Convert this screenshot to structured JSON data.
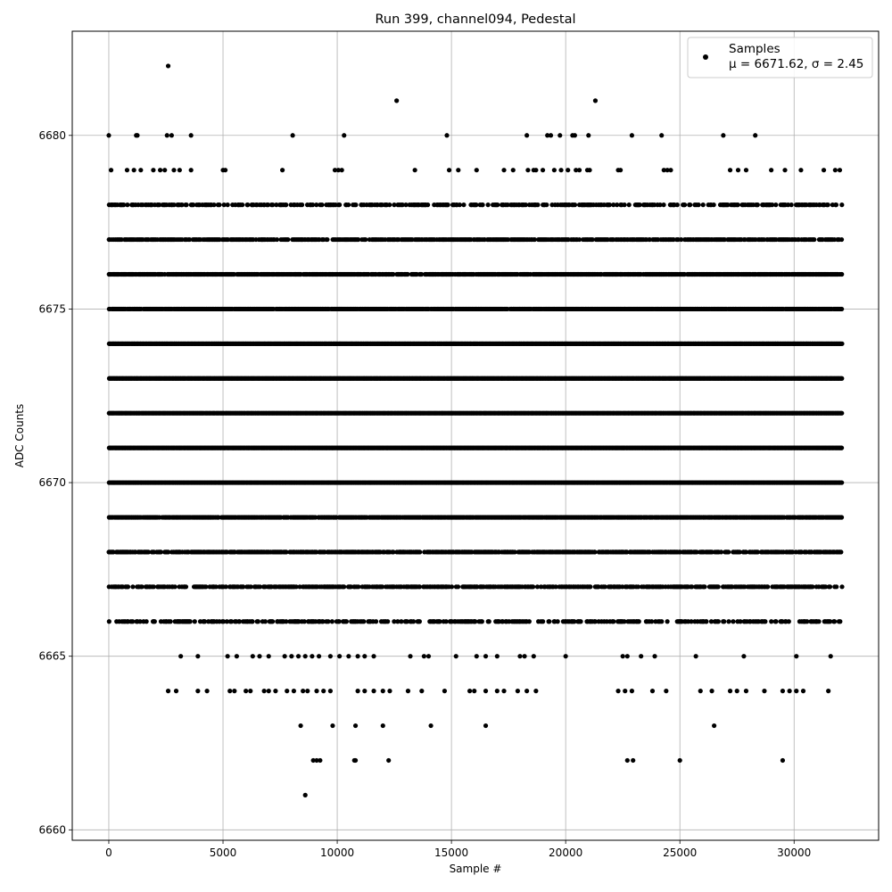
{
  "chart_data": {
    "type": "scatter",
    "title": "Run 399, channel094, Pedestal",
    "xlabel": "Sample #",
    "ylabel": "ADC Counts",
    "xlim": [
      -1600,
      33700
    ],
    "ylim": [
      6659.7,
      6683.0
    ],
    "xticks": [
      0,
      5000,
      10000,
      15000,
      20000,
      25000,
      30000
    ],
    "yticks": [
      6660,
      6665,
      6670,
      6675,
      6680
    ],
    "grid": true,
    "legend_position": "top-right",
    "marker_color": "#000000",
    "series": [
      {
        "name": "Samples",
        "stats_text": "μ = 6671.62, σ = 2.45",
        "dense_levels": [
          {
            "y": 6666,
            "x_range": [
              0,
              32100
            ],
            "density": 0.45
          },
          {
            "y": 6667,
            "x_range": [
              0,
              32100
            ],
            "density": 0.6
          },
          {
            "y": 6668,
            "x_range": [
              0,
              32100
            ],
            "density": 0.75
          },
          {
            "y": 6669,
            "x_range": [
              0,
              32100
            ],
            "density": 0.9
          },
          {
            "y": 6670,
            "x_range": [
              0,
              32100
            ],
            "density": 1.0
          },
          {
            "y": 6671,
            "x_range": [
              0,
              32100
            ],
            "density": 1.0
          },
          {
            "y": 6672,
            "x_range": [
              0,
              32100
            ],
            "density": 1.0
          },
          {
            "y": 6673,
            "x_range": [
              0,
              32100
            ],
            "density": 1.0
          },
          {
            "y": 6674,
            "x_range": [
              0,
              32100
            ],
            "density": 1.0
          },
          {
            "y": 6675,
            "x_range": [
              0,
              32100
            ],
            "density": 0.95
          },
          {
            "y": 6676,
            "x_range": [
              0,
              32100
            ],
            "density": 0.85
          },
          {
            "y": 6677,
            "x_range": [
              0,
              32100
            ],
            "density": 0.7
          },
          {
            "y": 6678,
            "x_range": [
              0,
              32100
            ],
            "density": 0.45
          }
        ],
        "points": [
          [
            2600,
            6682
          ],
          [
            12600,
            6681
          ],
          [
            21300,
            6681
          ],
          [
            0,
            6680
          ],
          [
            1200,
            6680
          ],
          [
            1250,
            6680
          ],
          [
            2550,
            6680
          ],
          [
            2750,
            6680
          ],
          [
            3600,
            6680
          ],
          [
            8050,
            6680
          ],
          [
            10300,
            6680
          ],
          [
            14800,
            6680
          ],
          [
            18300,
            6680
          ],
          [
            19200,
            6680
          ],
          [
            19350,
            6680
          ],
          [
            19750,
            6680
          ],
          [
            20300,
            6680
          ],
          [
            20400,
            6680
          ],
          [
            21000,
            6680
          ],
          [
            22900,
            6680
          ],
          [
            24200,
            6680
          ],
          [
            26900,
            6680
          ],
          [
            28300,
            6680
          ],
          [
            100,
            6679
          ],
          [
            800,
            6679
          ],
          [
            1100,
            6679
          ],
          [
            1400,
            6679
          ],
          [
            1950,
            6679
          ],
          [
            2250,
            6679
          ],
          [
            2450,
            6679
          ],
          [
            2850,
            6679
          ],
          [
            3100,
            6679
          ],
          [
            3600,
            6679
          ],
          [
            5000,
            6679
          ],
          [
            5100,
            6679
          ],
          [
            7600,
            6679
          ],
          [
            9900,
            6679
          ],
          [
            10050,
            6679
          ],
          [
            10200,
            6679
          ],
          [
            13400,
            6679
          ],
          [
            14900,
            6679
          ],
          [
            15300,
            6679
          ],
          [
            16100,
            6679
          ],
          [
            17300,
            6679
          ],
          [
            17700,
            6679
          ],
          [
            18350,
            6679
          ],
          [
            18600,
            6679
          ],
          [
            18700,
            6679
          ],
          [
            19000,
            6679
          ],
          [
            19500,
            6679
          ],
          [
            19800,
            6679
          ],
          [
            20100,
            6679
          ],
          [
            20450,
            6679
          ],
          [
            20600,
            6679
          ],
          [
            20950,
            6679
          ],
          [
            21050,
            6679
          ],
          [
            22300,
            6679
          ],
          [
            22400,
            6679
          ],
          [
            24300,
            6679
          ],
          [
            24450,
            6679
          ],
          [
            24600,
            6679
          ],
          [
            27200,
            6679
          ],
          [
            27550,
            6679
          ],
          [
            27900,
            6679
          ],
          [
            29000,
            6679
          ],
          [
            29600,
            6679
          ],
          [
            30300,
            6679
          ],
          [
            31300,
            6679
          ],
          [
            31800,
            6679
          ],
          [
            32000,
            6679
          ],
          [
            6800,
            6678
          ],
          [
            8850,
            6678
          ],
          [
            12800,
            6678
          ],
          [
            8450,
            6677
          ],
          [
            6700,
            6677
          ],
          [
            7200,
            6677
          ],
          [
            2600,
            6664
          ],
          [
            2950,
            6664
          ],
          [
            3900,
            6664
          ],
          [
            4300,
            6664
          ],
          [
            5300,
            6664
          ],
          [
            5500,
            6664
          ],
          [
            6000,
            6664
          ],
          [
            6200,
            6664
          ],
          [
            6800,
            6664
          ],
          [
            7000,
            6664
          ],
          [
            7300,
            6664
          ],
          [
            7800,
            6664
          ],
          [
            8100,
            6664
          ],
          [
            8500,
            6664
          ],
          [
            8700,
            6664
          ],
          [
            9100,
            6664
          ],
          [
            9400,
            6664
          ],
          [
            9700,
            6664
          ],
          [
            10900,
            6664
          ],
          [
            11200,
            6664
          ],
          [
            11600,
            6664
          ],
          [
            12000,
            6664
          ],
          [
            12300,
            6664
          ],
          [
            13100,
            6664
          ],
          [
            13700,
            6664
          ],
          [
            14700,
            6664
          ],
          [
            15800,
            6664
          ],
          [
            16000,
            6664
          ],
          [
            16500,
            6664
          ],
          [
            17000,
            6664
          ],
          [
            17300,
            6664
          ],
          [
            17900,
            6664
          ],
          [
            18300,
            6664
          ],
          [
            18700,
            6664
          ],
          [
            22300,
            6664
          ],
          [
            22600,
            6664
          ],
          [
            22900,
            6664
          ],
          [
            23800,
            6664
          ],
          [
            24400,
            6664
          ],
          [
            25900,
            6664
          ],
          [
            26400,
            6664
          ],
          [
            27200,
            6664
          ],
          [
            27500,
            6664
          ],
          [
            27900,
            6664
          ],
          [
            28700,
            6664
          ],
          [
            29500,
            6664
          ],
          [
            29800,
            6664
          ],
          [
            30100,
            6664
          ],
          [
            30400,
            6664
          ],
          [
            31500,
            6664
          ],
          [
            3150,
            6665
          ],
          [
            3900,
            6665
          ],
          [
            5200,
            6665
          ],
          [
            5600,
            6665
          ],
          [
            6300,
            6665
          ],
          [
            6600,
            6665
          ],
          [
            7000,
            6665
          ],
          [
            7700,
            6665
          ],
          [
            8000,
            6665
          ],
          [
            8300,
            6665
          ],
          [
            8600,
            6665
          ],
          [
            8900,
            6665
          ],
          [
            9200,
            6665
          ],
          [
            9700,
            6665
          ],
          [
            10100,
            6665
          ],
          [
            10500,
            6665
          ],
          [
            10900,
            6665
          ],
          [
            11200,
            6665
          ],
          [
            11600,
            6665
          ],
          [
            13200,
            6665
          ],
          [
            13800,
            6665
          ],
          [
            14000,
            6665
          ],
          [
            15200,
            6665
          ],
          [
            16100,
            6665
          ],
          [
            16500,
            6665
          ],
          [
            17000,
            6665
          ],
          [
            18000,
            6665
          ],
          [
            18200,
            6665
          ],
          [
            18600,
            6665
          ],
          [
            20000,
            6665
          ],
          [
            22500,
            6665
          ],
          [
            22700,
            6665
          ],
          [
            23300,
            6665
          ],
          [
            23900,
            6665
          ],
          [
            25700,
            6665
          ],
          [
            27800,
            6665
          ],
          [
            30100,
            6665
          ],
          [
            31600,
            6665
          ],
          [
            8400,
            6663
          ],
          [
            9800,
            6663
          ],
          [
            10800,
            6663
          ],
          [
            12000,
            6663
          ],
          [
            14100,
            6663
          ],
          [
            16500,
            6663
          ],
          [
            26500,
            6663
          ],
          [
            8950,
            6662
          ],
          [
            9100,
            6662
          ],
          [
            9250,
            6662
          ],
          [
            10750,
            6662
          ],
          [
            10800,
            6662
          ],
          [
            12250,
            6662
          ],
          [
            22700,
            6662
          ],
          [
            22950,
            6662
          ],
          [
            25000,
            6662
          ],
          [
            29500,
            6662
          ],
          [
            8600,
            6661
          ]
        ]
      }
    ]
  }
}
